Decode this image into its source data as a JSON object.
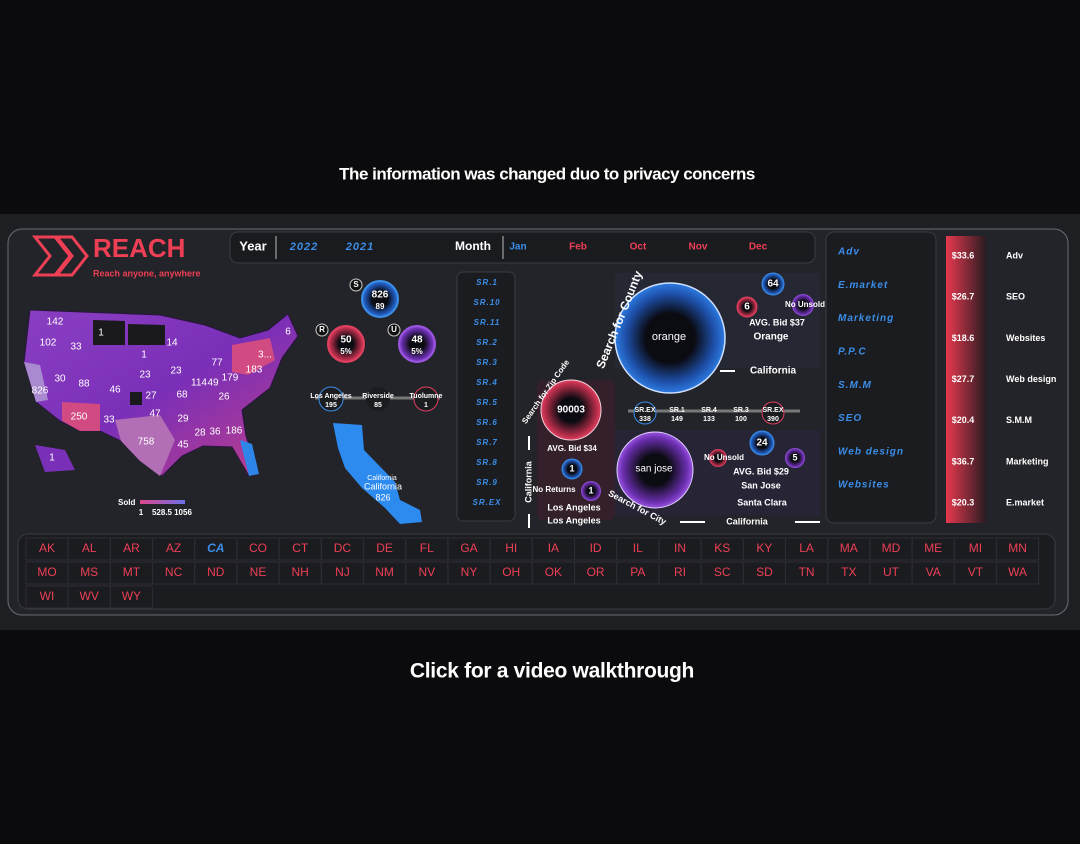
{
  "notice": "The information was changed duo to privacy concerns",
  "footer": "Click for a video walkthrough",
  "header": {
    "brand": "REACH",
    "tagline": "Reach anyone, anywhere"
  },
  "filters": {
    "year_label": "Year",
    "years": [
      "2022",
      "2021"
    ],
    "month_label": "Month",
    "months": [
      "Jan",
      "Feb",
      "Oct",
      "Nov",
      "Dec"
    ],
    "selected_month": "Jan"
  },
  "map": {
    "labels": [
      "142",
      "102",
      "33",
      "1",
      "14",
      "6",
      "1",
      "30",
      "88",
      "46",
      "23",
      "23",
      "77",
      "3...",
      "183",
      "826",
      "114",
      "49",
      "179",
      "27",
      "68",
      "26",
      "250",
      "33",
      "47",
      "29",
      "758",
      "28",
      "36",
      "186",
      "45",
      "1"
    ],
    "legend": {
      "title": "Sold",
      "min": "1",
      "mid": "528.5",
      "max": "1056"
    }
  },
  "metrics": [
    {
      "letter": "S",
      "value": "826",
      "sub": "89"
    },
    {
      "letter": "R",
      "value": "50",
      "sub": "5%"
    },
    {
      "letter": "U",
      "value": "48",
      "sub": "5%"
    }
  ],
  "cities": [
    {
      "name": "Los Angeles",
      "value": "195"
    },
    {
      "name": "Riverside",
      "value": "85"
    },
    {
      "name": "Tuolumne",
      "value": "1"
    }
  ],
  "california": {
    "title": "California",
    "name": "California",
    "value": "826"
  },
  "sr_list": [
    "SR.1",
    "SR.10",
    "SR.11",
    "SR.2",
    "SR.3",
    "SR.4",
    "SR.5",
    "SR.6",
    "SR.7",
    "SR.8",
    "SR.9",
    "SR.EX"
  ],
  "county": {
    "search": "Search for County",
    "name": "orange",
    "count": "64",
    "small": "6",
    "status": "No Unsold",
    "bid": "AVG. Bid $37",
    "county": "Orange",
    "state": "California"
  },
  "zip": {
    "search": "Search for Zip Code",
    "code": "90003",
    "bid": "AVG. Bid $34",
    "top": "1",
    "status": "No Returns",
    "side": "1",
    "city": "Los Angeles",
    "county": "Los Angeles",
    "state": "California"
  },
  "sr_bubbles": [
    {
      "name": "SR.EX",
      "value": "338"
    },
    {
      "name": "SR.1",
      "value": "149"
    },
    {
      "name": "SR.4",
      "value": "133"
    },
    {
      "name": "SR.3",
      "value": "100"
    },
    {
      "name": "SR.EX",
      "value": "390"
    }
  ],
  "city": {
    "search": "Search for City",
    "name": "san jose",
    "count": "24",
    "status": "No Unsold",
    "small": "5",
    "bid": "AVG. Bid $29",
    "city": "San Jose",
    "county": "Santa Clara",
    "state": "California"
  },
  "categories": [
    "Adv",
    "E.market",
    "Marketing",
    "P.P.C",
    "S.M.M",
    "SEO",
    "Web design",
    "Websites"
  ],
  "bids": [
    {
      "value": "$33.6",
      "name": "Adv"
    },
    {
      "value": "$26.7",
      "name": "SEO"
    },
    {
      "value": "$18.6",
      "name": "Websites"
    },
    {
      "value": "$27.7",
      "name": "Web design"
    },
    {
      "value": "$20.4",
      "name": "S.M.M"
    },
    {
      "value": "$36.7",
      "name": "Marketing"
    },
    {
      "value": "$20.3",
      "name": "E.market"
    }
  ],
  "states": [
    "AK",
    "AL",
    "AR",
    "AZ",
    "CA",
    "CO",
    "CT",
    "DC",
    "DE",
    "FL",
    "GA",
    "HI",
    "IA",
    "ID",
    "IL",
    "IN",
    "KS",
    "KY",
    "LA",
    "MA",
    "MD",
    "ME",
    "MI",
    "MN",
    "MO",
    "MS",
    "MT",
    "NC",
    "ND",
    "NE",
    "NH",
    "NJ",
    "NM",
    "NV",
    "NY",
    "OH",
    "OK",
    "OR",
    "PA",
    "RI",
    "SC",
    "SD",
    "TN",
    "TX",
    "UT",
    "VA",
    "VT",
    "WA",
    "WI",
    "WV",
    "WY"
  ],
  "selected_state": "CA"
}
